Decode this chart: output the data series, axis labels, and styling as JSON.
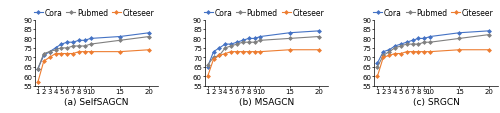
{
  "x_ticks": [
    1,
    2,
    3,
    4,
    5,
    6,
    7,
    8,
    9,
    10,
    15,
    20
  ],
  "x_values": [
    1,
    2,
    3,
    4,
    5,
    6,
    7,
    8,
    9,
    10,
    15,
    20
  ],
  "selfSAGCN": {
    "Cora": [
      64,
      71,
      73,
      75,
      77,
      78,
      78,
      79,
      79,
      80,
      81,
      83
    ],
    "Pubmed": [
      64,
      72,
      73,
      74,
      75,
      75,
      76,
      76,
      76,
      77,
      79,
      81
    ],
    "Citeseer": [
      57,
      68,
      70,
      72,
      72,
      72,
      72,
      73,
      73,
      73,
      73,
      74
    ]
  },
  "MSAGCN": {
    "Cora": [
      65,
      73,
      75,
      77,
      77,
      78,
      79,
      80,
      80,
      81,
      83,
      84
    ],
    "Pubmed": [
      66,
      70,
      71,
      75,
      76,
      77,
      78,
      78,
      78,
      79,
      80,
      81
    ],
    "Citeseer": [
      60,
      69,
      71,
      72,
      73,
      73,
      73,
      73,
      73,
      73,
      74,
      74
    ]
  },
  "SRGCN": {
    "Cora": [
      67,
      73,
      74,
      76,
      77,
      78,
      79,
      80,
      80,
      81,
      83,
      84
    ],
    "Pubmed": [
      65,
      71,
      73,
      75,
      76,
      77,
      77,
      77,
      78,
      78,
      80,
      82
    ],
    "Citeseer": [
      60,
      70,
      71,
      72,
      72,
      73,
      73,
      73,
      73,
      73,
      74,
      74
    ]
  },
  "colors": {
    "Cora": "#4472c4",
    "Pubmed": "#808080",
    "Citeseer": "#ed7d31"
  },
  "subtitles": [
    "(a) SelfSAGCN",
    "(b) MSAGCN",
    "(c) SRGCN"
  ],
  "ylim": [
    55,
    90
  ],
  "yticks": [
    55,
    60,
    65,
    70,
    75,
    80,
    85,
    90
  ],
  "legend_labels": [
    "Cora",
    "Pubmed",
    "Citeseer"
  ],
  "subtitle_fontsize": 6.5,
  "legend_fontsize": 5.5,
  "tick_fontsize": 5.0,
  "linewidth": 0.8,
  "markersize": 2.5
}
